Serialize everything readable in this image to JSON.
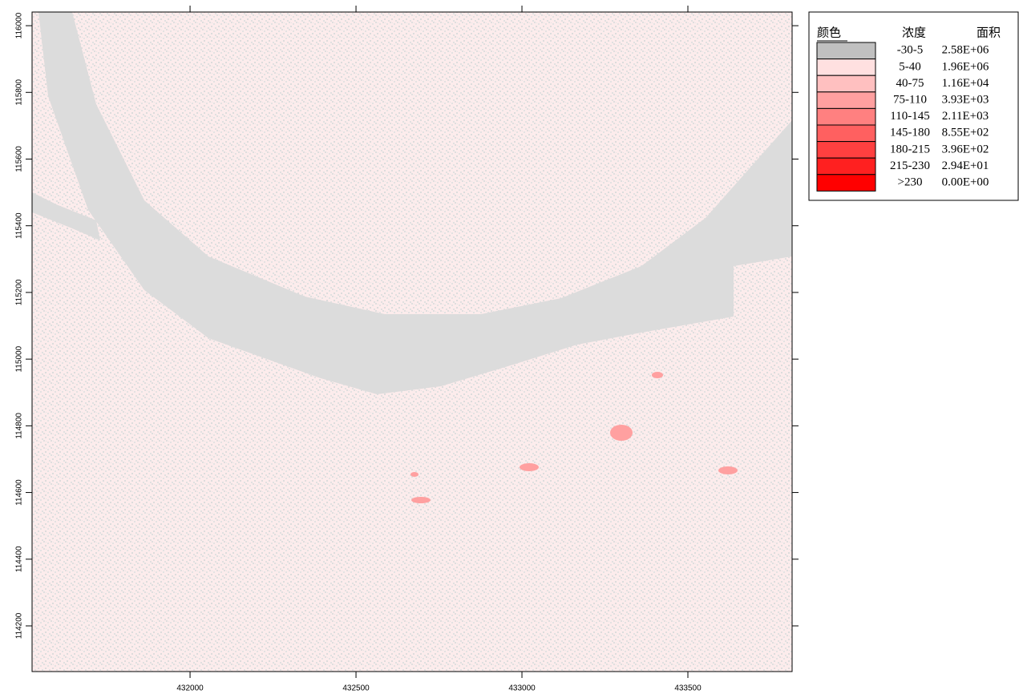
{
  "map": {
    "xlim": [
      431524,
      433814
    ],
    "ylim": [
      114063,
      116041
    ],
    "xticks": [
      432000,
      432500,
      433000,
      433500
    ],
    "yticks": [
      114200,
      114400,
      114600,
      114800,
      115000,
      115200,
      115400,
      115600,
      115800,
      116000
    ],
    "legend": {
      "headers": [
        "颜色",
        "浓度",
        "面积"
      ],
      "rows": [
        {
          "color": "#c0c0c0",
          "range": "-30-5",
          "area": "2.58E+06"
        },
        {
          "color": "#ffe0e0",
          "range": "5-40",
          "area": "1.96E+06"
        },
        {
          "color": "#ffc0c0",
          "range": "40-75",
          "area": "1.16E+04"
        },
        {
          "color": "#ffa0a0",
          "range": "75-110",
          "area": "3.93E+03"
        },
        {
          "color": "#ff8080",
          "range": "110-145",
          "area": "2.11E+03"
        },
        {
          "color": "#ff6060",
          "range": "145-180",
          "area": "8.55E+02"
        },
        {
          "color": "#ff4040",
          "range": "180-215",
          "area": "3.96E+02"
        },
        {
          "color": "#ff2020",
          "range": "215-230",
          "area": "2.94E+01"
        },
        {
          "color": "#ff0000",
          "range": ">230",
          "area": "0.00E+00"
        }
      ]
    }
  }
}
